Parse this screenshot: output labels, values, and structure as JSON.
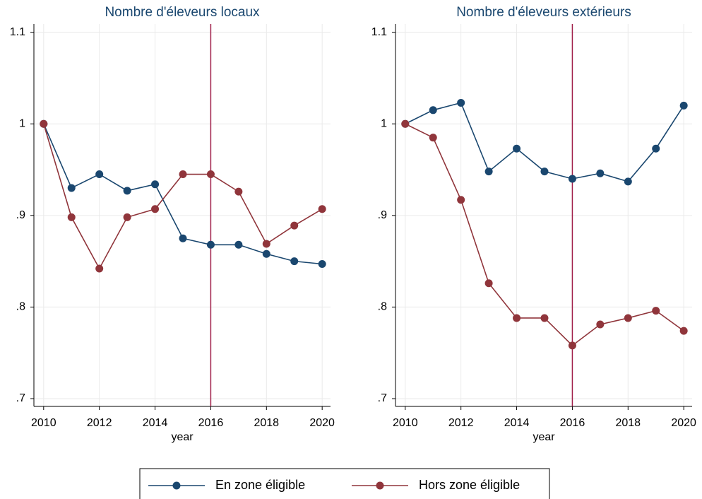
{
  "chart_data": [
    {
      "type": "line",
      "title": "Nombre d'éleveurs locaux",
      "xlabel": "year",
      "x": [
        2010,
        2011,
        2012,
        2013,
        2014,
        2015,
        2016,
        2017,
        2018,
        2019,
        2020
      ],
      "series": [
        {
          "name": "En zone éligible",
          "color": "#1a476f",
          "values": [
            1.0,
            0.93,
            0.945,
            0.927,
            0.934,
            0.875,
            0.868,
            0.868,
            0.858,
            0.85,
            0.847
          ]
        },
        {
          "name": "Hors zone éligible",
          "color": "#90353b",
          "values": [
            1.0,
            0.898,
            0.842,
            0.898,
            0.907,
            0.945,
            0.945,
            0.926,
            0.869,
            0.889,
            0.907
          ]
        }
      ],
      "vline": 2016,
      "vline_color": "#a0204a",
      "xlim": [
        2009.65,
        2020.3
      ],
      "xticks": [
        2010,
        2012,
        2014,
        2016,
        2018,
        2020
      ],
      "ylim": [
        0.6915,
        1.109
      ],
      "yticks": [
        {
          "value": 0.7,
          "label": ".7"
        },
        {
          "value": 0.8,
          "label": ".8"
        },
        {
          "value": 0.9,
          "label": ".9"
        },
        1,
        1.1
      ],
      "grid": true
    },
    {
      "type": "line",
      "title": "Nombre d'éleveurs extérieurs",
      "xlabel": "year",
      "x": [
        2010,
        2011,
        2012,
        2013,
        2014,
        2015,
        2016,
        2017,
        2018,
        2019,
        2020
      ],
      "series": [
        {
          "name": "En zone éligible",
          "color": "#1a476f",
          "values": [
            1.0,
            1.015,
            1.023,
            0.948,
            0.973,
            0.948,
            0.94,
            0.946,
            0.937,
            0.973,
            1.02
          ]
        },
        {
          "name": "Hors zone éligible",
          "color": "#90353b",
          "values": [
            1.0,
            0.985,
            0.917,
            0.826,
            0.788,
            0.788,
            0.758,
            0.781,
            0.788,
            0.796,
            0.774
          ]
        }
      ],
      "vline": 2016,
      "vline_color": "#a0204a",
      "xlim": [
        2009.65,
        2020.3
      ],
      "xticks": [
        2010,
        2012,
        2014,
        2016,
        2018,
        2020
      ],
      "ylim": [
        0.6915,
        1.109
      ],
      "yticks": [
        {
          "value": 0.7,
          "label": ".7"
        },
        {
          "value": 0.8,
          "label": ".8"
        },
        {
          "value": 0.9,
          "label": ".9"
        },
        1,
        1.1
      ],
      "grid": true
    }
  ]
}
